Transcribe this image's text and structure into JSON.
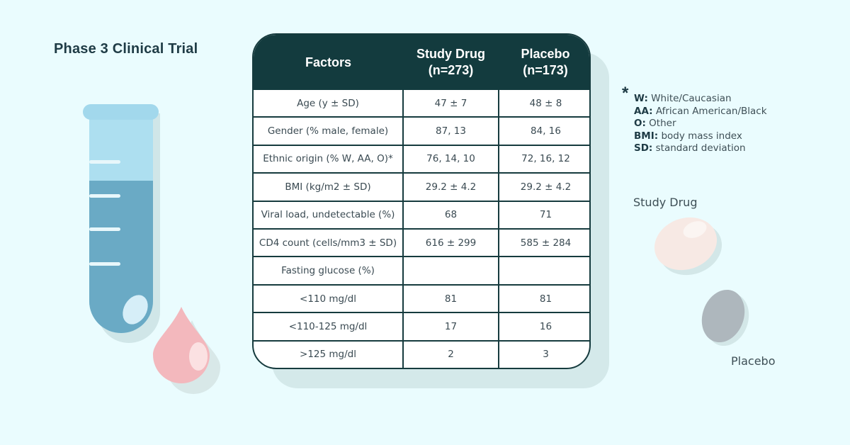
{
  "title": "Phase 3 Clinical Trial",
  "table": {
    "headers": [
      {
        "line1": "Factors",
        "line2": ""
      },
      {
        "line1": "Study Drug",
        "line2": "(n=273)"
      },
      {
        "line1": "Placebo",
        "line2": "(n=173)"
      }
    ],
    "rows": [
      [
        "Age (y ± SD)",
        "47 ± 7",
        "48 ± 8"
      ],
      [
        "Gender (% male, female)",
        "87, 13",
        "84, 16"
      ],
      [
        "Ethnic origin (% W, AA, O)*",
        "76, 14, 10",
        "72, 16, 12"
      ],
      [
        "BMI (kg/m2 ± SD)",
        "29.2 ± 4.2",
        "29.2 ± 4.2"
      ],
      [
        "Viral load, undetectable (%)",
        "68",
        "71"
      ],
      [
        "CD4 count (cells/mm3 ± SD)",
        "616 ± 299",
        "585 ± 284"
      ],
      [
        "Fasting glucose (%)",
        "",
        ""
      ],
      [
        "<110 mg/dl",
        "81",
        "81"
      ],
      [
        "<110-125 mg/dl",
        "17",
        "16"
      ],
      [
        ">125 mg/dl",
        "2",
        "3"
      ]
    ]
  },
  "footnote": {
    "marker": "*",
    "items": [
      {
        "key": "W:",
        "def": "White/Caucasian"
      },
      {
        "key": "AA:",
        "def": "African American/Black"
      },
      {
        "key": "O:",
        "def": "Other"
      },
      {
        "key": "BMI:",
        "def": "body mass index"
      },
      {
        "key": "SD:",
        "def": "standard deviation"
      }
    ]
  },
  "pill_labels": {
    "study_drug": "Study Drug",
    "placebo": "Placebo"
  },
  "colors": {
    "background": "#eafcfe",
    "table_header": "#133b3e",
    "test_tube_liquid": "#6aaac5",
    "blood_drop": "#f3b8bd",
    "study_drug_pill": "#f7e9e4",
    "placebo_pill": "#aeb7bd"
  },
  "icons": [
    "test-tube-icon",
    "blood-drop-icon",
    "study-drug-pill-icon",
    "placebo-pill-icon"
  ]
}
